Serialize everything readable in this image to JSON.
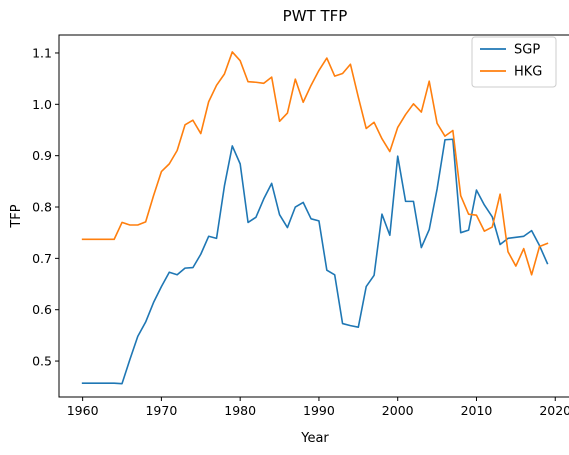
{
  "chart_data": {
    "type": "line",
    "title": "PWT TFP",
    "xlabel": "Year",
    "ylabel": "TFP",
    "xlim": [
      1957,
      2022
    ],
    "ylim": [
      0.43,
      1.135
    ],
    "xticks": [
      1960,
      1970,
      1980,
      1990,
      2000,
      2010,
      2020
    ],
    "yticks": [
      0.5,
      0.6,
      0.7,
      0.8,
      0.9,
      1.0,
      1.1
    ],
    "ytick_labels": [
      "0.5",
      "0.6",
      "0.7",
      "0.8",
      "0.9",
      "1.0",
      "1.1"
    ],
    "grid": false,
    "legend_position": "top-right",
    "x": [
      1960,
      1961,
      1962,
      1963,
      1964,
      1965,
      1966,
      1967,
      1968,
      1969,
      1970,
      1971,
      1972,
      1973,
      1974,
      1975,
      1976,
      1977,
      1978,
      1979,
      1980,
      1981,
      1982,
      1983,
      1984,
      1985,
      1986,
      1987,
      1988,
      1989,
      1990,
      1991,
      1992,
      1993,
      1994,
      1995,
      1996,
      1997,
      1998,
      1999,
      2000,
      2001,
      2002,
      2003,
      2004,
      2005,
      2006,
      2007,
      2008,
      2009,
      2010,
      2011,
      2012,
      2013,
      2014,
      2015,
      2016,
      2017,
      2018,
      2019
    ],
    "series": [
      {
        "name": "SGP",
        "color": "#1f77b4",
        "values": [
          0.457,
          0.457,
          0.457,
          0.457,
          0.457,
          0.456,
          0.503,
          0.548,
          0.576,
          0.614,
          0.645,
          0.673,
          0.668,
          0.681,
          0.682,
          0.708,
          0.743,
          0.739,
          0.841,
          0.919,
          0.884,
          0.77,
          0.78,
          0.816,
          0.846,
          0.785,
          0.76,
          0.8,
          0.809,
          0.777,
          0.773,
          0.677,
          0.668,
          0.573,
          0.569,
          0.566,
          0.645,
          0.667,
          0.786,
          0.745,
          0.899,
          0.811,
          0.811,
          0.721,
          0.756,
          0.835,
          0.931,
          0.932,
          0.75,
          0.755,
          0.833,
          0.804,
          0.781,
          0.727,
          0.739,
          0.741,
          0.743,
          0.754,
          0.725,
          0.69
        ]
      },
      {
        "name": "HKG",
        "color": "#ff7f0e",
        "values": [
          0.737,
          0.737,
          0.737,
          0.737,
          0.737,
          0.77,
          0.765,
          0.765,
          0.771,
          0.822,
          0.869,
          0.884,
          0.91,
          0.96,
          0.969,
          0.943,
          1.005,
          1.037,
          1.059,
          1.102,
          1.085,
          1.044,
          1.043,
          1.041,
          1.053,
          0.967,
          0.983,
          1.049,
          1.004,
          1.037,
          1.066,
          1.09,
          1.055,
          1.06,
          1.078,
          1.014,
          0.953,
          0.965,
          0.933,
          0.908,
          0.955,
          0.98,
          1.001,
          0.985,
          1.045,
          0.963,
          0.938,
          0.949,
          0.822,
          0.786,
          0.784,
          0.753,
          0.761,
          0.825,
          0.713,
          0.685,
          0.719,
          0.668,
          0.723,
          0.729
        ]
      }
    ]
  }
}
